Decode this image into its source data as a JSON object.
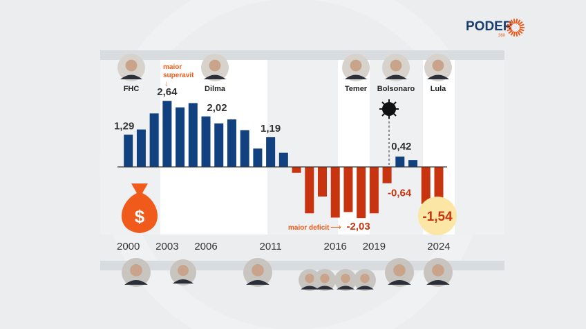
{
  "logo": {
    "text": "PODER",
    "sub": "360",
    "color": "#1a3d6d",
    "accent": "#f05a1a"
  },
  "colors": {
    "positive": "#12417f",
    "negative": "#c83410",
    "annotation": "#f05a1a",
    "highlight": "#fbe6a6"
  },
  "presidents": [
    {
      "name": "FHC"
    },
    {
      "name": "Dilma"
    },
    {
      "name": "Temer"
    },
    {
      "name": "Bolsonaro"
    },
    {
      "name": "Lula"
    }
  ],
  "annotations": {
    "max_surplus": "maior\nsuperavit",
    "max_surplus_line1": "maior",
    "max_surplus_line2": "superavit",
    "max_deficit": "maior deficit",
    "covid_icon": "virus-icon",
    "money_icon": "money-bag-icon",
    "money_symbol": "$"
  },
  "chart_data": {
    "type": "bar",
    "categories": [
      "2000",
      "2001",
      "2002",
      "2003",
      "2004",
      "2005",
      "2006",
      "2007",
      "2008",
      "2009",
      "2010",
      "2011",
      "2012",
      "2013",
      "2014",
      "2015",
      "2016",
      "2017",
      "2018",
      "2019",
      "2020",
      "2021",
      "2022",
      "2023",
      "2024"
    ],
    "values": [
      1.29,
      1.5,
      2.14,
      2.64,
      2.38,
      2.55,
      2.02,
      1.74,
      1.9,
      1.47,
      0.74,
      1.19,
      0.57,
      -0.23,
      -1.84,
      -1.17,
      -2.01,
      -1.79,
      -2.03,
      -1.84,
      -0.64,
      0.42,
      0.28,
      -1.47,
      -1.54
    ],
    "tick_labels": [
      "2000",
      "2003",
      "2006",
      "2011",
      "2016",
      "2019",
      "2024"
    ],
    "data_labels": [
      {
        "x": "2000",
        "text": "1,29"
      },
      {
        "x": "2003",
        "text": "2,64"
      },
      {
        "x": "2006",
        "text": "2,02"
      },
      {
        "x": "2011",
        "text": "1,19"
      },
      {
        "x": "2018",
        "text": "-2,03"
      },
      {
        "x": "2020",
        "text": "-0,64"
      },
      {
        "x": "2021",
        "text": "0,42"
      },
      {
        "x": "2024",
        "text": "-1,54"
      }
    ],
    "title": "",
    "xlabel": "",
    "ylabel": "",
    "grid": false
  }
}
